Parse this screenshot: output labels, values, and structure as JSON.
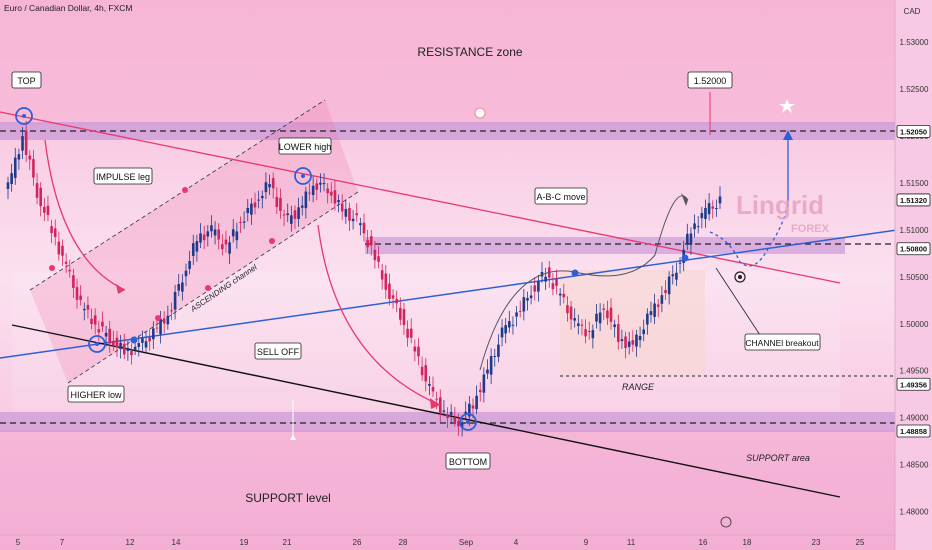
{
  "header": {
    "title": "Euro / Canadian Dollar, 4h, FXCM"
  },
  "axis": {
    "currency": "CAD",
    "y_ticks": [
      "1.53000",
      "1.52500",
      "1.52000",
      "1.51500",
      "1.51000",
      "1.50500",
      "1.50000",
      "1.49500",
      "1.49000",
      "1.48500",
      "1.48000"
    ],
    "x_ticks": [
      "5",
      "7",
      "12",
      "14",
      "19",
      "21",
      "26",
      "28",
      "Sep",
      "4",
      "9",
      "11",
      "16",
      "18",
      "23",
      "25"
    ],
    "price_labels": [
      "1.52050",
      "1.51320",
      "1.50800",
      "1.49356",
      "1.48858"
    ]
  },
  "annotations": {
    "resistance_zone": "RESISTANCE zone",
    "top": "TOP",
    "impulse_leg": "IMPULSE leg",
    "lower_high": "LOWER high",
    "ascending_channel": "ASCENDING channel",
    "sell_off": "SELL OFF",
    "higher_low": "HIGHER low",
    "support_level": "SUPPORT level",
    "bottom": "BOTTOM",
    "abc_move": "A-B-C move",
    "range": "RANGE",
    "channel_breakout": "CHANNEl breakout",
    "support_area": "SUPPORT area",
    "target": "1.52000"
  },
  "brand": {
    "name": "Lingrid",
    "sub": "FOREX"
  },
  "colors": {
    "bull": "#1e3a8a",
    "bear": "#d1245c",
    "zone": "#c895d6",
    "channel": "#e8386d",
    "trend": "#2f5fd6"
  },
  "chart_data": {
    "type": "candlestick",
    "symbol": "EURCAD",
    "timeframe": "4h",
    "ylim": [
      1.4775,
      1.5345
    ],
    "levels": [
      1.5205,
      1.5132,
      1.508,
      1.49356,
      1.48858
    ],
    "target": 1.52,
    "close_series": [
      1.5145,
      1.52,
      1.514,
      1.51,
      1.506,
      1.502,
      1.5,
      1.4985,
      1.497,
      1.4975,
      1.499,
      1.501,
      1.505,
      1.509,
      1.51,
      1.508,
      1.511,
      1.513,
      1.515,
      1.511,
      1.512,
      1.515,
      1.5145,
      1.512,
      1.511,
      1.508,
      1.504,
      1.501,
      1.497,
      1.493,
      1.4905,
      1.4895,
      1.4915,
      1.495,
      1.499,
      1.501,
      1.5035,
      1.5055,
      1.503,
      1.5,
      1.499,
      1.502,
      1.4985,
      1.4975,
      1.5005,
      1.503,
      1.506,
      1.51,
      1.512,
      1.513
    ]
  }
}
